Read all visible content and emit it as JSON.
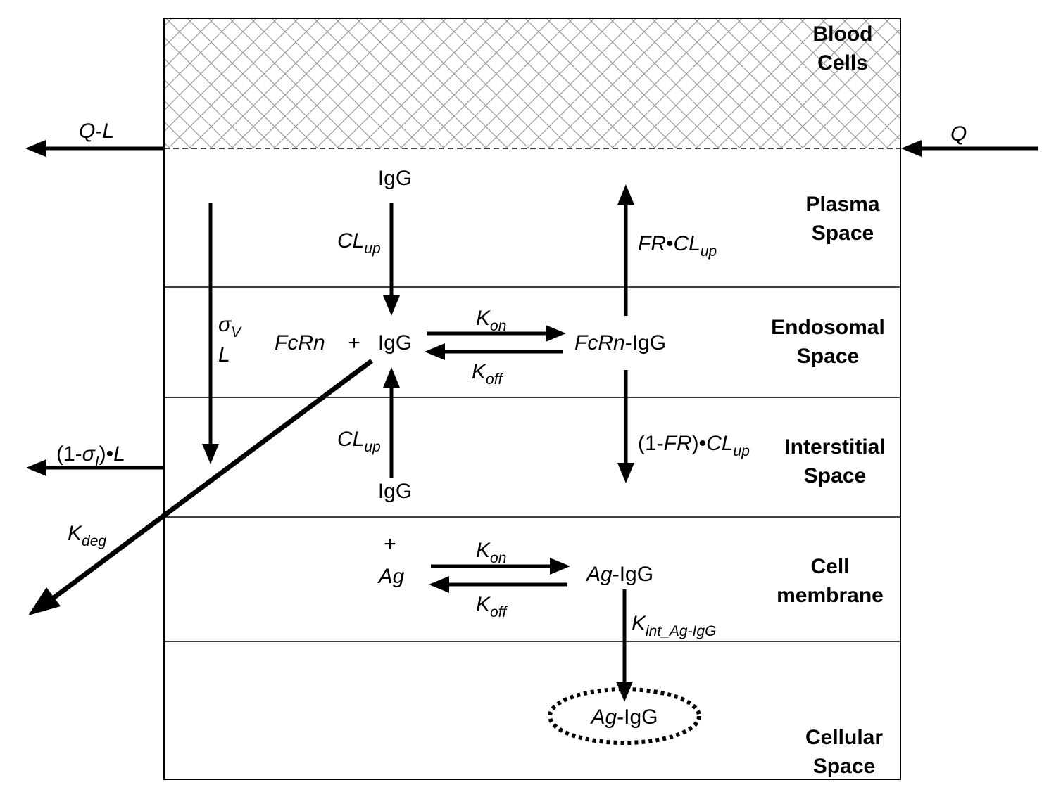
{
  "compartments": {
    "blood_cells": [
      "Blood",
      "Cells"
    ],
    "plasma": [
      "Plasma",
      "Space"
    ],
    "endosomal": [
      "Endosomal",
      "Space"
    ],
    "interstitial": [
      "Interstitial",
      "Space"
    ],
    "cell_membrane": [
      "Cell",
      "membrane"
    ],
    "cellular": [
      "Cellular",
      "Space"
    ]
  },
  "flows": {
    "q_l": {
      "a": "Q",
      "b": "-",
      "c": "L"
    },
    "q": "Q",
    "one_minus_sigma_l": {
      "p1": "(1-",
      "sigma": "σ",
      "sub": "I",
      "p2": ")•",
      "l": "L"
    },
    "sigma_v": {
      "sigma": "σ",
      "sub": "V",
      "l": "L"
    },
    "k_deg": {
      "k": "K",
      "sub": "deg"
    }
  },
  "plasma_space": {
    "igg": "IgG",
    "cl_up": {
      "main": "CL",
      "sub": "up"
    },
    "fr_cl_up": {
      "fr": "FR",
      "dot": "•",
      "cl": "CL",
      "sub": "up"
    }
  },
  "endosomal_space": {
    "fcrn": "FcRn",
    "plus": "+",
    "igg": "IgG",
    "k_on": {
      "k": "K",
      "sub": "on"
    },
    "k_off": {
      "k": "K",
      "sub": "off"
    },
    "complex": {
      "italic": "FcRn",
      "rest": "-IgG"
    }
  },
  "interstitial_space": {
    "cl_up": {
      "main": "CL",
      "sub": "up"
    },
    "igg": "IgG",
    "one_minus_fr": {
      "p1": "(1-",
      "fr": "FR",
      "p2": ")•",
      "cl": "CL",
      "sub": "up"
    }
  },
  "cell_membrane_rxn": {
    "plus": "+",
    "ag": "Ag",
    "k_on": {
      "k": "K",
      "sub": "on"
    },
    "k_off": {
      "k": "K",
      "sub": "off"
    },
    "complex": {
      "italic": "Ag",
      "rest": "-IgG"
    },
    "k_int": {
      "k": "K",
      "sub": "int_Ag-IgG"
    }
  },
  "cellular_space": {
    "complex": {
      "italic": "Ag",
      "rest": "-IgG"
    }
  }
}
